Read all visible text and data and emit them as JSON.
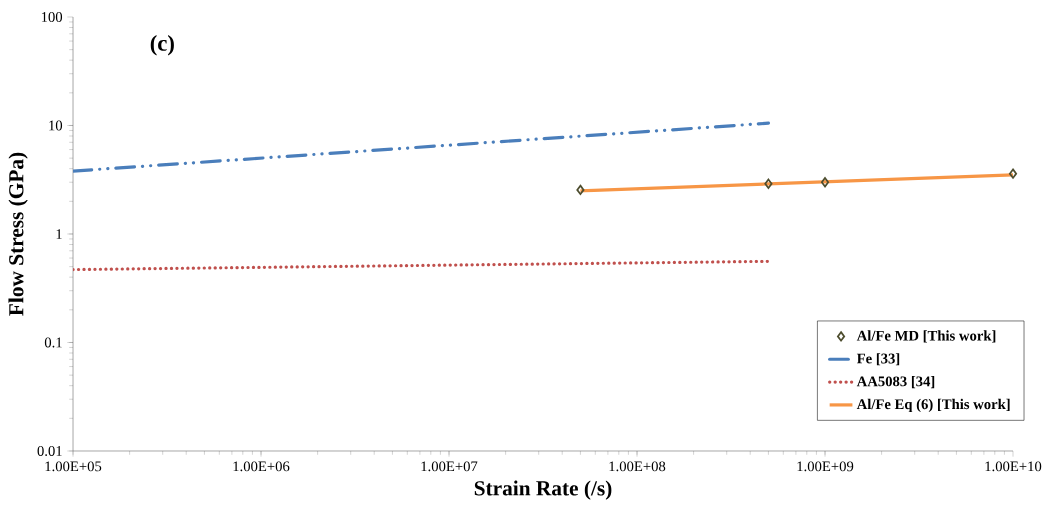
{
  "chart_data": {
    "type": "line",
    "xlabel": "Strain Rate (/s)",
    "ylabel": "Flow Stress (GPa)",
    "log": "xy",
    "xlim": [
      100000,
      10000000000
    ],
    "ylim": [
      0.01,
      100
    ],
    "xticks": [
      {
        "value": 100000,
        "label": "1.00E+05"
      },
      {
        "value": 1000000,
        "label": "1.00E+06"
      },
      {
        "value": 10000000,
        "label": "1.00E+07"
      },
      {
        "value": 100000000,
        "label": "1.00E+08"
      },
      {
        "value": 1000000000,
        "label": "1.00E+09"
      },
      {
        "value": 10000000000,
        "label": "1.00E+10"
      }
    ],
    "yticks": [
      0.01,
      0.1,
      1,
      10,
      100
    ],
    "grid": false,
    "legend": "bottom right",
    "annotations": [
      "(c)"
    ],
    "series": [
      {
        "name": "Al/Fe MD [This work]",
        "type": "scatter",
        "marker": "diamond",
        "color": "#4d4d2e",
        "x": [
          50000000,
          500000000,
          1000000000,
          10000000000
        ],
        "values": [
          2.55,
          2.9,
          3.0,
          3.6
        ]
      },
      {
        "name": "Fe [33]",
        "line_style": "dashdot",
        "color": "#4a7ebb",
        "x": [
          100000,
          500000000
        ],
        "values": [
          3.8,
          10.5
        ]
      },
      {
        "name": "AA5083 [34]",
        "line_style": "dotted",
        "color": "#c0504d",
        "x": [
          100000,
          500000000
        ],
        "values": [
          0.47,
          0.56
        ]
      },
      {
        "name": "Al/Fe Eq (6) [This work]",
        "line_style": "solid",
        "color": "#f79646",
        "x": [
          50000000,
          10000000000
        ],
        "values": [
          2.5,
          3.5
        ]
      }
    ]
  }
}
